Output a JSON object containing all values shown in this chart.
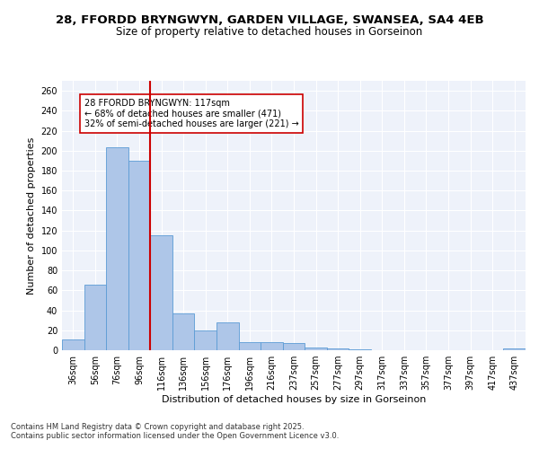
{
  "title_line1": "28, FFORDD BRYNGWYN, GARDEN VILLAGE, SWANSEA, SA4 4EB",
  "title_line2": "Size of property relative to detached houses in Gorseinon",
  "xlabel": "Distribution of detached houses by size in Gorseinon",
  "ylabel": "Number of detached properties",
  "bins": [
    "36sqm",
    "56sqm",
    "76sqm",
    "96sqm",
    "116sqm",
    "136sqm",
    "156sqm",
    "176sqm",
    "196sqm",
    "216sqm",
    "237sqm",
    "257sqm",
    "277sqm",
    "297sqm",
    "317sqm",
    "337sqm",
    "357sqm",
    "377sqm",
    "397sqm",
    "417sqm",
    "437sqm"
  ],
  "values": [
    11,
    66,
    203,
    190,
    115,
    37,
    20,
    28,
    8,
    8,
    7,
    3,
    2,
    1,
    0,
    0,
    0,
    0,
    0,
    0,
    2
  ],
  "bar_color": "#aec6e8",
  "bar_edge_color": "#5b9bd5",
  "red_line_x": 3.5,
  "red_line_color": "#cc0000",
  "annotation_text": "28 FFORDD BRYNGWYN: 117sqm\n← 68% of detached houses are smaller (471)\n32% of semi-detached houses are larger (221) →",
  "annotation_box_color": "#ffffff",
  "annotation_box_edge_color": "#cc0000",
  "ylim": [
    0,
    270
  ],
  "yticks": [
    0,
    20,
    40,
    60,
    80,
    100,
    120,
    140,
    160,
    180,
    200,
    220,
    240,
    260
  ],
  "footer_text": "Contains HM Land Registry data © Crown copyright and database right 2025.\nContains public sector information licensed under the Open Government Licence v3.0.",
  "background_color": "#eef2fa",
  "grid_color": "#ffffff",
  "title_fontsize": 9.5,
  "subtitle_fontsize": 8.5,
  "axis_label_fontsize": 8,
  "tick_fontsize": 7,
  "annotation_fontsize": 7,
  "footer_fontsize": 6
}
